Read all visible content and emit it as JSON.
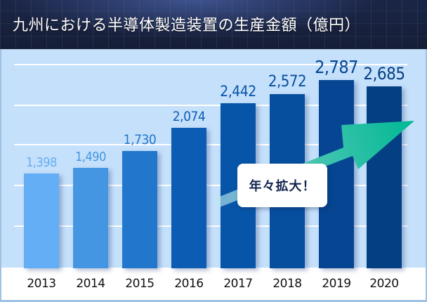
{
  "header": {
    "title": "九州における半導体製造装置の生産金額（億円）"
  },
  "badge": {
    "label": "年々拡大！"
  },
  "colors": {
    "header_bg": "#1b2547",
    "chart_bg": "#c5e0fb",
    "arrow": "#00b894",
    "badge_text": "#14234f",
    "bars": [
      "#63aef5",
      "#4496e2",
      "#2077cc",
      "#0c5cb4",
      "#0755a8",
      "#064f9e",
      "#054592",
      "#043f83"
    ],
    "labels": [
      "#63aef5",
      "#4496e2",
      "#2077cc",
      "#0c5cb4",
      "#0755a8",
      "#064f9e",
      "#054592",
      "#043f83"
    ]
  },
  "chart_data": {
    "type": "bar",
    "title": "九州における半導体製造装置の生産金額（億円）",
    "xlabel": "",
    "ylabel": "億円",
    "categories": [
      "2013",
      "2014",
      "2015",
      "2016",
      "2017",
      "2018",
      "2019",
      "2020"
    ],
    "values": [
      1398,
      1490,
      1730,
      2074,
      2442,
      2572,
      2787,
      2685
    ],
    "value_labels": [
      "1,398",
      "1,490",
      "1,730",
      "2,074",
      "2,442",
      "2,572",
      "2,787",
      "2,685"
    ],
    "grid": true,
    "annotation": "年々拡大！"
  }
}
